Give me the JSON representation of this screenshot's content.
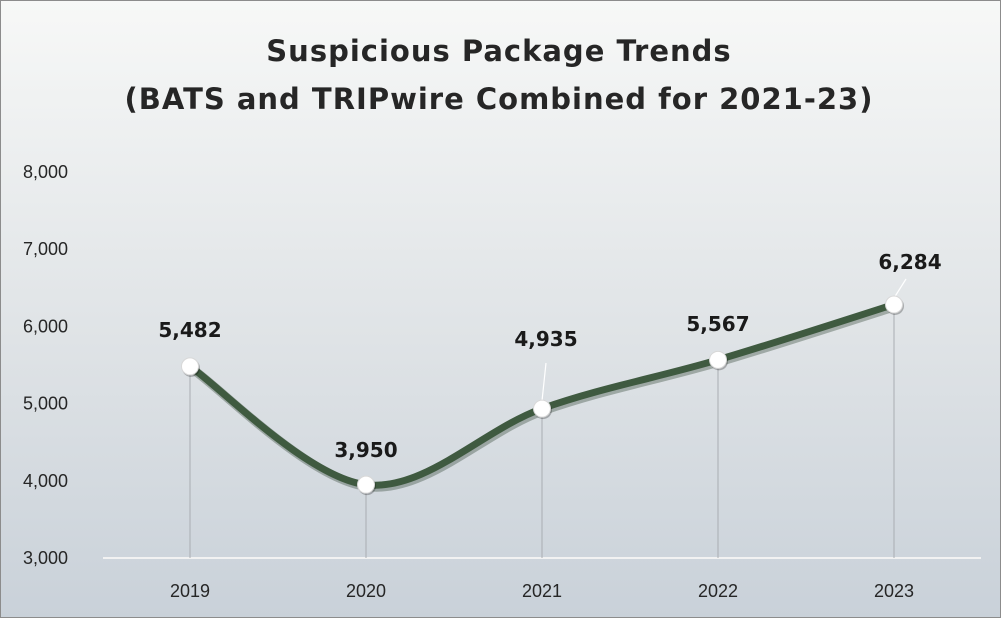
{
  "chart_data": {
    "type": "line",
    "title": [
      "Suspicious Package Trends",
      "(BATS and TRIPwire Combined for 2021-23)"
    ],
    "categories": [
      "2019",
      "2020",
      "2021",
      "2022",
      "2023"
    ],
    "series": [
      {
        "values": [
          5482,
          3950,
          4935,
          5567,
          6284
        ],
        "color": "#3f5a40"
      }
    ],
    "data_labels": [
      "5,482",
      "3,950",
      "4,935",
      "5,567",
      "6,284"
    ],
    "y_ticks": [
      "3,000",
      "4,000",
      "5,000",
      "6,000",
      "7,000",
      "8,000"
    ],
    "ylim": [
      3000,
      8000
    ],
    "xlabel": "",
    "ylabel": "",
    "grid": false,
    "drop_lines": true,
    "smooth": true,
    "marker": "white-circle"
  }
}
